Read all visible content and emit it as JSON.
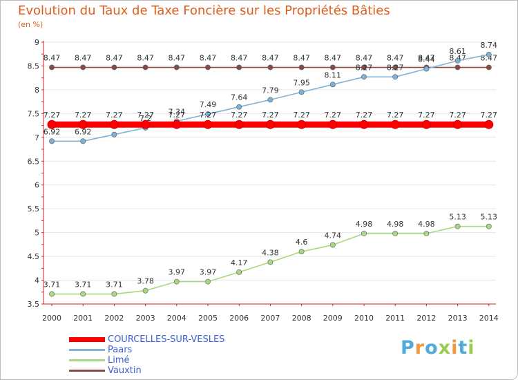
{
  "chart_data": {
    "type": "line",
    "title": "Evolution du Taux de Taxe Foncière sur les Propriétés Bâties",
    "subtitle": "(en %)",
    "x": [
      "2000",
      "2001",
      "2002",
      "2003",
      "2004",
      "2005",
      "2006",
      "2007",
      "2008",
      "2009",
      "2010",
      "2011",
      "2012",
      "2013",
      "2014"
    ],
    "ylim": [
      3.5,
      9
    ],
    "yticks": [
      "3.5",
      "4",
      "4.5",
      "5",
      "5.5",
      "6",
      "6.5",
      "7",
      "7.5",
      "8",
      "8.5",
      "9"
    ],
    "grid": "horizontal",
    "legend_position": "bottom-left",
    "series": [
      {
        "name": "COURCELLES-SUR-VESLES",
        "color": "#ff0000",
        "values": [
          7.27,
          7.27,
          7.27,
          7.27,
          7.27,
          7.27,
          7.27,
          7.27,
          7.27,
          7.27,
          7.27,
          7.27,
          7.27,
          7.27,
          7.27
        ],
        "labels": [
          "7.27",
          "7.27",
          "7.27",
          "7.27",
          "7.27",
          "7.27",
          "7.27",
          "7.27",
          "7.27",
          "7.27",
          "7.27",
          "7.27",
          "7.27",
          "7.27",
          "7.27"
        ]
      },
      {
        "name": "Paars",
        "color": "#7fb2d9",
        "values": [
          6.92,
          6.92,
          7.06,
          7.2,
          7.34,
          7.49,
          7.64,
          7.79,
          7.95,
          8.11,
          8.27,
          8.27,
          8.44,
          8.61,
          8.74
        ],
        "labels": [
          "6.92",
          "6.92",
          "7.06",
          "7.2",
          "7.34",
          "7.49",
          "7.64",
          "7.79",
          "7.95",
          "8.11",
          "8.27",
          "8.27",
          "8.44",
          "8.61",
          "8.74"
        ]
      },
      {
        "name": "Limé",
        "color": "#a8d884",
        "values": [
          3.71,
          3.71,
          3.71,
          3.78,
          3.97,
          3.97,
          4.17,
          4.38,
          4.6,
          4.74,
          4.98,
          4.98,
          4.98,
          5.13,
          5.13
        ],
        "labels": [
          "3.71",
          "3.71",
          "3.71",
          "3.78",
          "3.97",
          "3.97",
          "4.17",
          "4.38",
          "4.6",
          "4.74",
          "4.98",
          "4.98",
          "4.98",
          "5.13",
          "5.13"
        ]
      },
      {
        "name": "Vauxtin",
        "color": "#8b4a4a",
        "values": [
          8.47,
          8.47,
          8.47,
          8.47,
          8.47,
          8.47,
          8.47,
          8.47,
          8.47,
          8.47,
          8.47,
          8.47,
          8.47,
          8.47,
          8.47
        ],
        "labels": [
          "8.47",
          "8.47",
          "8.47",
          "8.47",
          "8.47",
          "8.47",
          "8.47",
          "8.47",
          "8.47",
          "8.47",
          "8.47",
          "8.47",
          "8.47",
          "8.47",
          "8.47"
        ]
      }
    ]
  },
  "watermark": {
    "letters": [
      "P",
      "r",
      "o",
      "x",
      "i",
      "t",
      "i"
    ],
    "colors": [
      "#3fa0d8",
      "#f28c28",
      "#3fa0d8",
      "#8cc63f",
      "#f28c28",
      "#3fa0d8",
      "#8cc63f"
    ]
  }
}
